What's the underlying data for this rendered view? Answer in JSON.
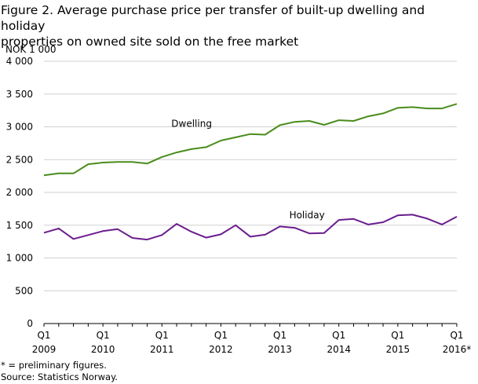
{
  "title_lines": [
    "Figure 2. Average purchase price per transfer of built-up dwelling and holiday",
    "properties on owned site sold on the free market"
  ],
  "unit_label": "NOK 1 000",
  "footnote": "* = preliminary figures.",
  "source": "Source: Statistics Norway.",
  "chart_data": {
    "type": "line",
    "title": "Figure 2. Average purchase price per transfer of built-up dwelling and holiday properties on owned site sold on the free market",
    "ylabel": "NOK 1 000",
    "ylim": [
      0,
      4000
    ],
    "yticks": [
      0,
      500,
      1000,
      1500,
      2000,
      2500,
      3000,
      3500,
      4000
    ],
    "ytick_labels": [
      "0",
      "500",
      "1 000",
      "1 500",
      "2 000",
      "2 500",
      "3 000",
      "3 500",
      "4 000"
    ],
    "grid": "horizontal",
    "x": [
      "2009Q1",
      "2009Q2",
      "2009Q3",
      "2009Q4",
      "2010Q1",
      "2010Q2",
      "2010Q3",
      "2010Q4",
      "2011Q1",
      "2011Q2",
      "2011Q3",
      "2011Q4",
      "2012Q1",
      "2012Q2",
      "2012Q3",
      "2012Q4",
      "2013Q1",
      "2013Q2",
      "2013Q3",
      "2013Q4",
      "2014Q1",
      "2014Q2",
      "2014Q3",
      "2014Q4",
      "2015Q1",
      "2015Q2",
      "2015Q3",
      "2015Q4",
      "2016Q1"
    ],
    "xtick_labels": [
      {
        "index": 0,
        "q": "Q1",
        "year": "2009"
      },
      {
        "index": 4,
        "q": "Q1",
        "year": "2010"
      },
      {
        "index": 8,
        "q": "Q1",
        "year": "2011"
      },
      {
        "index": 12,
        "q": "Q1",
        "year": "2012"
      },
      {
        "index": 16,
        "q": "Q1",
        "year": "2013"
      },
      {
        "index": 20,
        "q": "Q1",
        "year": "2014"
      },
      {
        "index": 24,
        "q": "Q1",
        "year": "2015"
      },
      {
        "index": 28,
        "q": "Q1",
        "year": "2016*"
      }
    ],
    "series": [
      {
        "name": "Dwelling",
        "color": "#4a8c1c",
        "values": [
          2260,
          2290,
          2290,
          2430,
          2455,
          2465,
          2465,
          2440,
          2540,
          2610,
          2660,
          2690,
          2790,
          2840,
          2890,
          2880,
          3025,
          3075,
          3090,
          3030,
          3100,
          3090,
          3160,
          3205,
          3290,
          3300,
          3280,
          3280,
          3350
        ]
      },
      {
        "name": "Holiday",
        "color": "#6a1d8e",
        "values": [
          1385,
          1450,
          1290,
          1350,
          1410,
          1440,
          1305,
          1280,
          1350,
          1520,
          1400,
          1310,
          1360,
          1500,
          1325,
          1355,
          1480,
          1460,
          1375,
          1380,
          1580,
          1595,
          1510,
          1545,
          1650,
          1660,
          1600,
          1510,
          1630
        ]
      }
    ]
  }
}
